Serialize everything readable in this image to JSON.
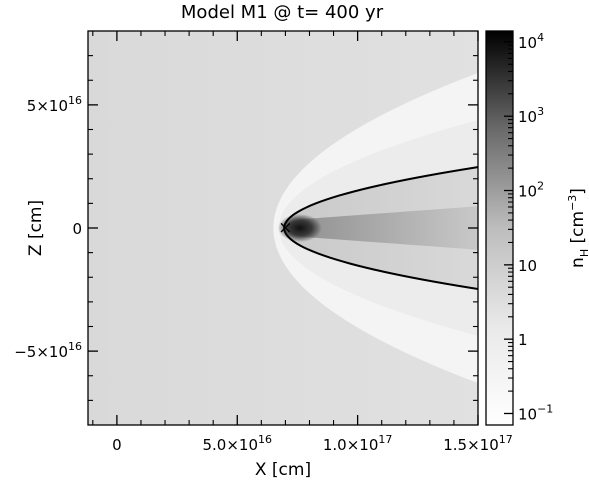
{
  "chart_data": {
    "type": "heatmap",
    "title": "Model M1 @ t= 400 yr",
    "xlabel": "X [cm]",
    "ylabel": "Z [cm]",
    "xlim": [
      -1.2e+16,
      1.5e+17
    ],
    "ylim": [
      -8e+16,
      8e+16
    ],
    "x_ticks": [
      {
        "value": 0,
        "label": "0"
      },
      {
        "value": 5e+16,
        "label": "5.0×10",
        "exp": "16"
      },
      {
        "value": 1e+17,
        "label": "1.0×10",
        "exp": "17"
      },
      {
        "value": 1.5e+17,
        "label": "1.5×10",
        "exp": "17"
      }
    ],
    "y_ticks": [
      {
        "value": 5e+16,
        "label": "5×10",
        "exp": "16"
      },
      {
        "value": 0,
        "label": "0"
      },
      {
        "value": -5e+16,
        "label": "−5×10",
        "exp": "16"
      }
    ],
    "colorbar": {
      "label_main": "n",
      "label_sub": "H",
      "label_unit": " [cm",
      "label_unit_exp": "−3",
      "label_close": "]",
      "scale": "log",
      "range": [
        0.07,
        14000
      ],
      "colormap": "gray_reversed",
      "ticks": [
        {
          "value": 10000,
          "label": "10",
          "exp": "4"
        },
        {
          "value": 1000,
          "label": "10",
          "exp": "3"
        },
        {
          "value": 100,
          "label": "10",
          "exp": "2"
        },
        {
          "value": 10,
          "label": "10",
          "exp": ""
        },
        {
          "value": 1,
          "label": "1",
          "exp": ""
        },
        {
          "value": 0.1,
          "label": "10",
          "exp": "−1"
        }
      ]
    },
    "features": {
      "star_marker": {
        "x": 7e+16,
        "z": 0,
        "symbol": "×"
      },
      "dense_core": {
        "x": 7.6e+16,
        "z": 0,
        "peak_density": 10000
      },
      "contact_curve": {
        "apex_x": 6.95e+16,
        "z_at_xmax": 2.6e+16
      },
      "outer_shock": {
        "apex_x": 6.5e+16,
        "z_at_xmax": 6.6e+16
      },
      "ambient_density": 0.3,
      "bowshock_density": 0.6,
      "tail_density": 3
    }
  }
}
